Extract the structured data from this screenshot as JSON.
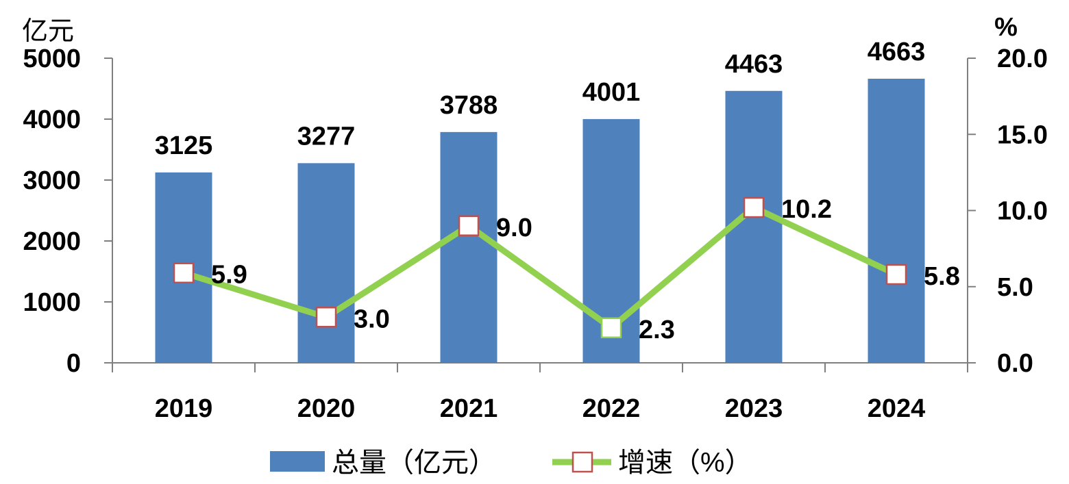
{
  "chart_data": {
    "type": "bar",
    "categories": [
      "2019",
      "2020",
      "2021",
      "2022",
      "2023",
      "2024"
    ],
    "series": [
      {
        "name": "总量（亿元）",
        "type": "bar",
        "axis": "left",
        "values": [
          3125,
          3277,
          3788,
          4001,
          4463,
          4663
        ],
        "labels": [
          "3125",
          "3277",
          "3788",
          "4001",
          "4463",
          "4663"
        ]
      },
      {
        "name": "增速（%）",
        "type": "line",
        "axis": "right",
        "values": [
          5.9,
          3.0,
          9.0,
          2.3,
          10.2,
          5.8
        ],
        "labels": [
          "5.9",
          "3.0",
          "9.0",
          "2.3",
          "10.2",
          "5.8"
        ]
      }
    ],
    "y_left": {
      "unit": "亿元",
      "ylim": [
        0,
        5000
      ],
      "ticks": [
        "0",
        "1000",
        "2000",
        "3000",
        "4000",
        "5000"
      ]
    },
    "y_right": {
      "unit": "%",
      "ylim": [
        0,
        20
      ],
      "ticks": [
        "0.0",
        "5.0",
        "10.0",
        "15.0",
        "20.0"
      ]
    },
    "grid": false,
    "legend": "bottom",
    "colors": {
      "bar": "#4f81bd",
      "line": "#92d050",
      "marker_edge": "#c0504d",
      "marker_fill": "#ffffff",
      "axis": "#7f7f7f"
    }
  }
}
